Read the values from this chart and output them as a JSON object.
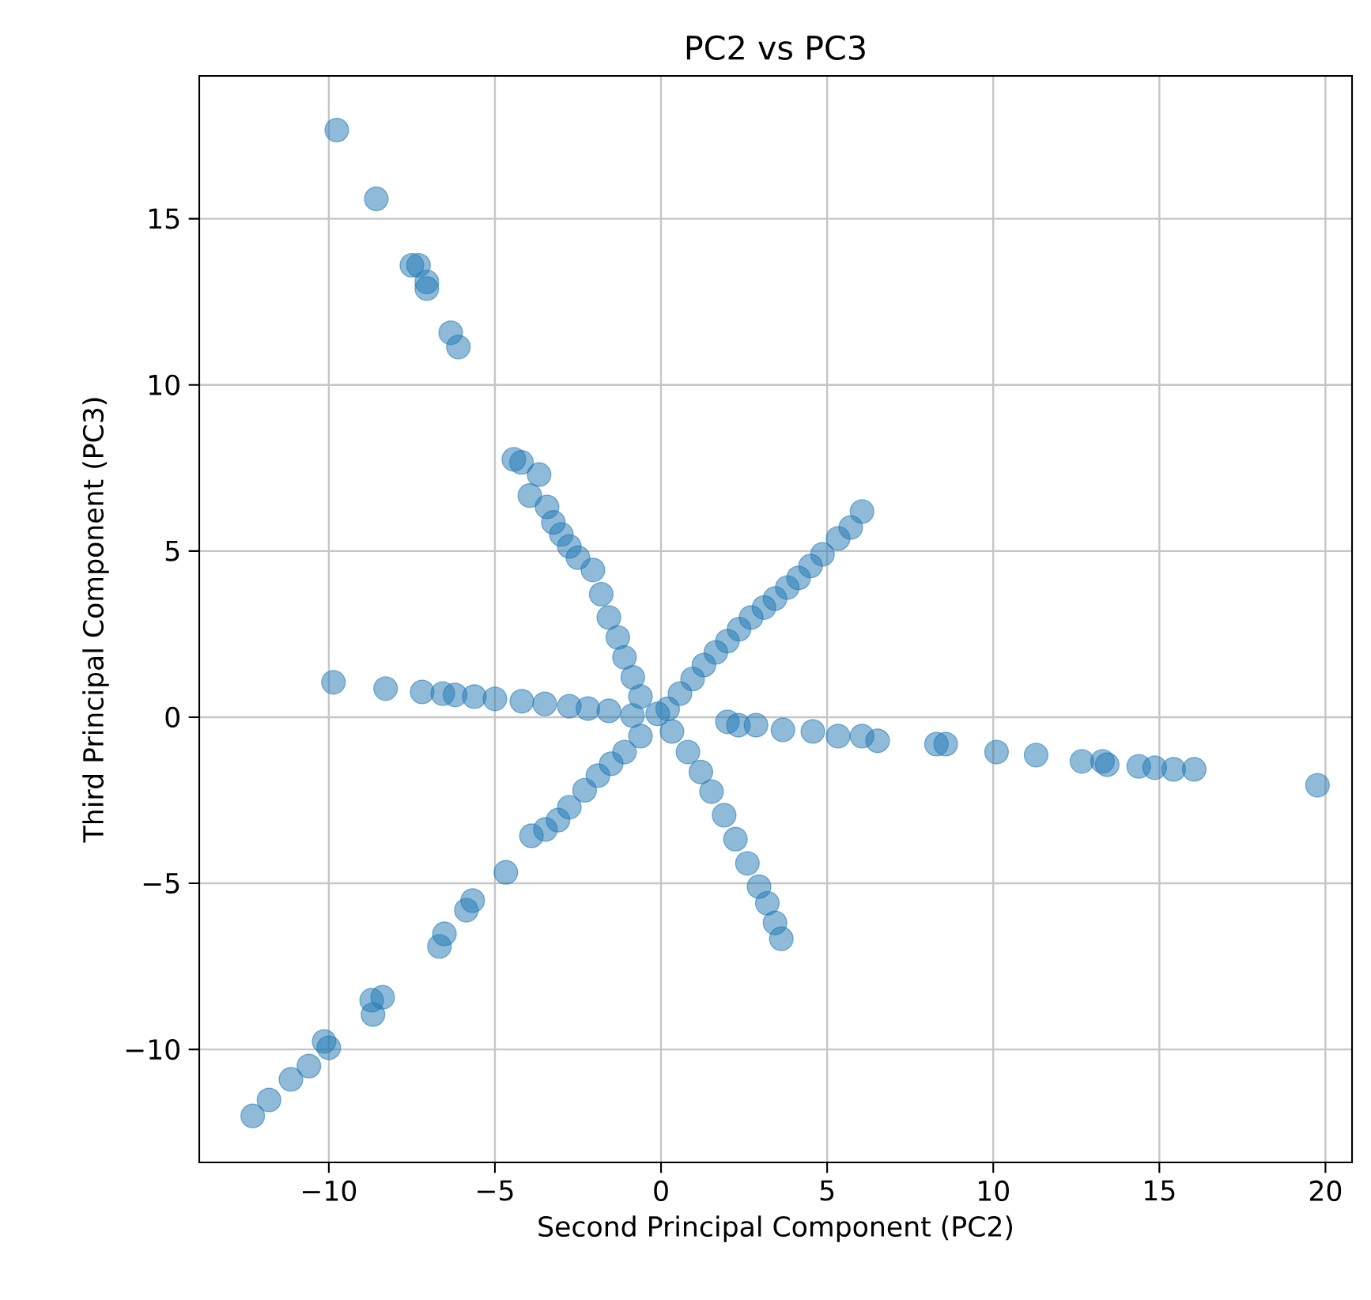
{
  "chart_data": {
    "type": "scatter",
    "title": "PC2 vs PC3",
    "xlabel": "Second Principal Component (PC2)",
    "ylabel": "Third Principal Component (PC3)",
    "xlim": [
      -13.9,
      20.8
    ],
    "ylim": [
      -13.4,
      19.3
    ],
    "xticks": [
      {
        "value": -10,
        "label": "−10"
      },
      {
        "value": -5,
        "label": "−5"
      },
      0,
      5,
      10,
      15,
      20
    ],
    "yticks": [
      {
        "value": -10,
        "label": "−10"
      },
      {
        "value": -5,
        "label": "−5"
      },
      0,
      5,
      10,
      15
    ],
    "grid": true,
    "marker": "circle",
    "series": [
      {
        "color": "#1f77b4",
        "x": [
          -9.76,
          -8.57,
          -7.5,
          -7.3,
          -7.05,
          -7.05,
          -6.33,
          -6.1,
          -4.43,
          -4.2,
          -3.67,
          -3.95,
          -3.43,
          -3.24,
          -3.0,
          -2.76,
          -2.5,
          -2.05,
          -1.8,
          -1.57,
          -1.3,
          -1.1,
          -0.85,
          -0.62,
          -0.1,
          -9.86,
          -8.29,
          -7.19,
          -6.57,
          -6.2,
          -5.62,
          -5.0,
          -4.19,
          -3.5,
          -2.76,
          -2.2,
          -1.57,
          -0.86,
          -12.29,
          -11.8,
          -11.14,
          -10.6,
          -10.14,
          -10.0,
          -8.71,
          -8.38,
          -8.67,
          -6.67,
          -6.52,
          -5.86,
          -5.67,
          -4.67,
          -3.9,
          -3.48,
          -3.1,
          -2.76,
          -2.3,
          -1.9,
          -1.5,
          -1.1,
          -0.62,
          3.62,
          3.43,
          3.2,
          2.95,
          2.6,
          2.24,
          1.9,
          1.52,
          1.2,
          0.81,
          0.33,
          6.05,
          5.71,
          5.33,
          4.86,
          4.5,
          4.14,
          3.8,
          3.43,
          3.1,
          2.71,
          2.35,
          2.0,
          1.65,
          1.29,
          0.95,
          0.57,
          0.2,
          2.0,
          2.33,
          2.86,
          3.67,
          4.57,
          5.33,
          6.05,
          6.52,
          8.29,
          8.57,
          10.1,
          11.29,
          12.67,
          13.29,
          13.43,
          14.38,
          14.86,
          15.43,
          16.05,
          19.76
        ],
        "values": [
          17.67,
          15.6,
          13.6,
          13.6,
          13.1,
          12.9,
          11.57,
          11.14,
          7.76,
          7.67,
          7.3,
          6.67,
          6.33,
          5.86,
          5.5,
          5.14,
          4.8,
          4.43,
          3.7,
          3.0,
          2.4,
          1.8,
          1.2,
          0.62,
          0.1,
          1.05,
          0.86,
          0.76,
          0.71,
          0.67,
          0.62,
          0.55,
          0.48,
          0.4,
          0.33,
          0.26,
          0.19,
          0.05,
          -12.0,
          -11.52,
          -10.9,
          -10.5,
          -9.76,
          -9.95,
          -8.52,
          -8.43,
          -8.95,
          -6.9,
          -6.52,
          -5.81,
          -5.52,
          -4.67,
          -3.57,
          -3.38,
          -3.1,
          -2.71,
          -2.2,
          -1.76,
          -1.4,
          -1.05,
          -0.57,
          -6.67,
          -6.19,
          -5.6,
          -5.1,
          -4.4,
          -3.67,
          -2.95,
          -2.24,
          -1.65,
          -1.05,
          -0.43,
          6.19,
          5.71,
          5.38,
          4.9,
          4.55,
          4.19,
          3.9,
          3.57,
          3.3,
          3.0,
          2.65,
          2.29,
          1.95,
          1.57,
          1.15,
          0.71,
          0.25,
          -0.14,
          -0.24,
          -0.24,
          -0.38,
          -0.43,
          -0.57,
          -0.57,
          -0.71,
          -0.81,
          -0.81,
          -1.05,
          -1.14,
          -1.33,
          -1.33,
          -1.43,
          -1.48,
          -1.52,
          -1.57,
          -1.57,
          -2.05
        ]
      }
    ]
  }
}
